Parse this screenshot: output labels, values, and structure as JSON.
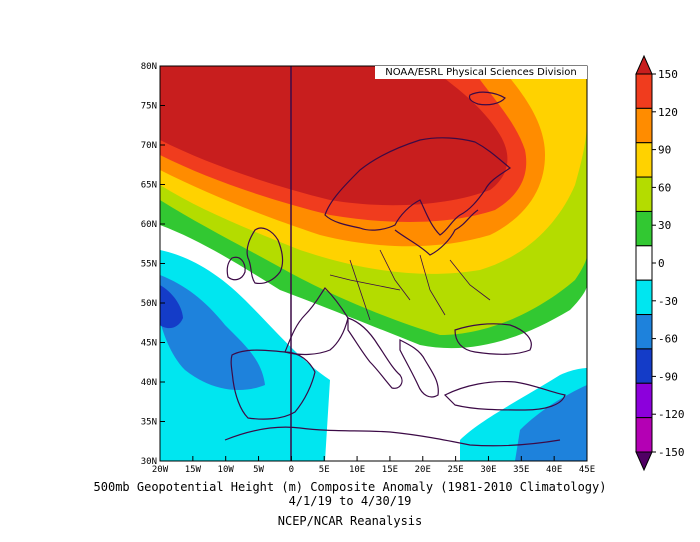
{
  "credit": "NOAA/ESRL Physical Sciences Division",
  "caption": {
    "line1": "500mb Geopotential Height (m) Composite Anomaly (1981-2010 Climatology)",
    "line2": "4/1/19  to 4/30/19",
    "line3": "NCEP/NCAR Reanalysis"
  },
  "map": {
    "lon_labels": [
      "20W",
      "15W",
      "10W",
      "5W",
      "0",
      "5E",
      "10E",
      "15E",
      "20E",
      "25E",
      "30E",
      "35E",
      "40E",
      "45E"
    ],
    "lat_labels": [
      "80N",
      "75N",
      "70N",
      "65N",
      "60N",
      "55N",
      "50N",
      "45N",
      "40N",
      "35N",
      "30N"
    ],
    "lon_range": [
      -20,
      45
    ],
    "lat_range": [
      30,
      80
    ]
  },
  "colorbar": {
    "labels": [
      "150",
      "120",
      "90",
      "60",
      "30",
      "0",
      "-30",
      "-60",
      "-90",
      "-120",
      "-150"
    ],
    "colors": [
      "#c81e1e",
      "#f03c1e",
      "#ff8c00",
      "#ffd200",
      "#b4dc00",
      "#32c832",
      "#ffffff",
      "#00e6f0",
      "#1e82dc",
      "#143cc8",
      "#8c00dc",
      "#b400b4",
      "#500064"
    ]
  }
}
